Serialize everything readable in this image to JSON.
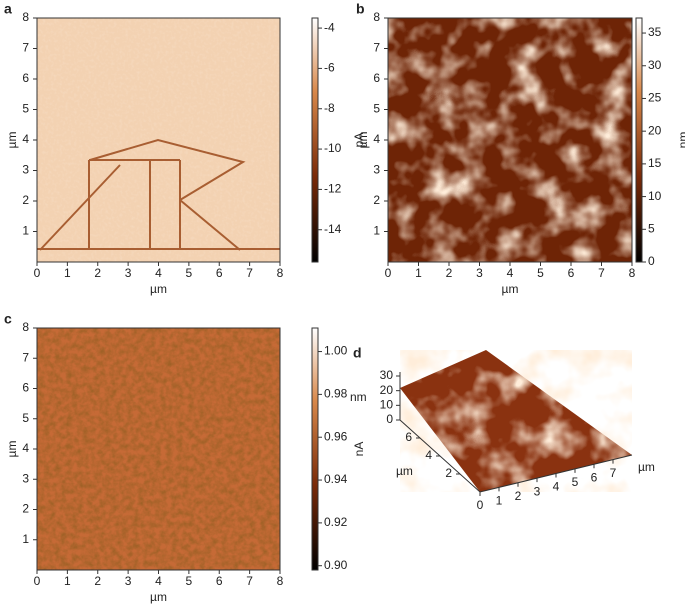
{
  "panels": [
    {
      "label": "a",
      "xlabel": "µm",
      "ylabel": "µm",
      "xticks": [
        0,
        1,
        2,
        3,
        4,
        5,
        6,
        7,
        8
      ],
      "yticks": [
        1,
        2,
        3,
        4,
        5,
        6,
        7,
        8
      ],
      "xlim": [
        0,
        8
      ],
      "ylim": [
        0,
        8
      ],
      "colorbar": {
        "label": "pA",
        "lim": [
          -15.6,
          -3.5
        ],
        "ticks": [
          -14,
          -12,
          -10,
          -8,
          -6,
          -4
        ]
      }
    },
    {
      "label": "b",
      "xlabel": "µm",
      "ylabel": "µm",
      "xticks": [
        0,
        1,
        2,
        3,
        4,
        5,
        6,
        7,
        8
      ],
      "yticks": [
        1,
        2,
        3,
        4,
        5,
        6,
        7,
        8
      ],
      "xlim": [
        0,
        8
      ],
      "ylim": [
        0,
        8
      ],
      "colorbar": {
        "label": "nm",
        "lim": [
          0,
          37.3
        ],
        "ticks": [
          0,
          5,
          10,
          15,
          20,
          25,
          30,
          35
        ]
      }
    },
    {
      "label": "c",
      "xlabel": "µm",
      "ylabel": "µm",
      "xticks": [
        0,
        1,
        2,
        3,
        4,
        5,
        6,
        7,
        8
      ],
      "yticks": [
        1,
        2,
        3,
        4,
        5,
        6,
        7,
        8
      ],
      "xlim": [
        0,
        8
      ],
      "ylim": [
        0,
        8
      ],
      "colorbar": {
        "label": "nA",
        "lim": [
          0.898,
          1.011
        ],
        "ticks": [
          {
            "value": 0.9,
            "label": "0.90"
          },
          {
            "value": 0.92,
            "label": "0.92"
          },
          {
            "value": 0.94,
            "label": "0.94"
          },
          {
            "value": 0.96,
            "label": "0.96"
          },
          {
            "value": 0.98,
            "label": "0.98"
          },
          {
            "value": 1.0,
            "label": "1.00"
          }
        ]
      }
    },
    {
      "label": "d",
      "zlabel": "nm",
      "zticks": [
        0,
        10,
        20,
        30
      ],
      "ylabel": "µm",
      "yticks": [
        2,
        4,
        6
      ],
      "xlabel": "µm",
      "xticks": [
        0,
        1,
        2,
        3,
        4,
        5,
        6,
        7
      ]
    }
  ]
}
